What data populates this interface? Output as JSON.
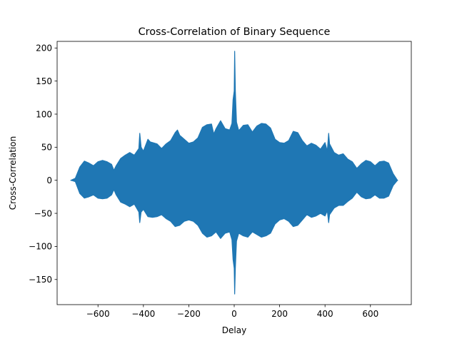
{
  "chart_data": {
    "type": "line",
    "title": "Cross-Correlation of Binary Sequence",
    "xlabel": "Delay",
    "ylabel": "Cross-Correlation",
    "xlim": [
      -780,
      780
    ],
    "ylim": [
      -188,
      210
    ],
    "xticks": [
      -600,
      -400,
      -200,
      0,
      200,
      400,
      600
    ],
    "xtick_labels": [
      "−600",
      "−400",
      "−200",
      "0",
      "200",
      "400",
      "600"
    ],
    "yticks": [
      -150,
      -100,
      -50,
      0,
      50,
      100,
      150,
      200
    ],
    "ytick_labels": [
      "−150",
      "−100",
      "−50",
      "0",
      "50",
      "100",
      "150",
      "200"
    ],
    "grid": false,
    "legend": false,
    "series": [
      {
        "color": "#1f77b4",
        "x_range": [
          -719,
          719
        ],
        "upper_envelope": [
          [
            -719,
            0
          ],
          [
            -700,
            3
          ],
          [
            -680,
            20
          ],
          [
            -660,
            29
          ],
          [
            -640,
            26
          ],
          [
            -620,
            22
          ],
          [
            -600,
            28
          ],
          [
            -580,
            30
          ],
          [
            -560,
            28
          ],
          [
            -540,
            24
          ],
          [
            -530,
            15
          ],
          [
            -520,
            22
          ],
          [
            -500,
            33
          ],
          [
            -480,
            38
          ],
          [
            -460,
            42
          ],
          [
            -440,
            38
          ],
          [
            -420,
            48
          ],
          [
            -416,
            71
          ],
          [
            -410,
            50
          ],
          [
            -400,
            44
          ],
          [
            -380,
            62
          ],
          [
            -370,
            58
          ],
          [
            -360,
            57
          ],
          [
            -340,
            55
          ],
          [
            -320,
            48
          ],
          [
            -300,
            55
          ],
          [
            -280,
            60
          ],
          [
            -260,
            72
          ],
          [
            -250,
            76
          ],
          [
            -240,
            68
          ],
          [
            -220,
            62
          ],
          [
            -200,
            56
          ],
          [
            -180,
            58
          ],
          [
            -160,
            64
          ],
          [
            -140,
            80
          ],
          [
            -120,
            84
          ],
          [
            -100,
            85
          ],
          [
            -90,
            70
          ],
          [
            -80,
            78
          ],
          [
            -60,
            90
          ],
          [
            -40,
            78
          ],
          [
            -20,
            76
          ],
          [
            -10,
            86
          ],
          [
            -5,
            122
          ],
          [
            0,
            135
          ],
          [
            2,
            195
          ],
          [
            5,
            135
          ],
          [
            10,
            88
          ],
          [
            20,
            75
          ],
          [
            40,
            83
          ],
          [
            60,
            84
          ],
          [
            80,
            73
          ],
          [
            100,
            82
          ],
          [
            120,
            86
          ],
          [
            140,
            85
          ],
          [
            160,
            79
          ],
          [
            180,
            62
          ],
          [
            200,
            57
          ],
          [
            220,
            56
          ],
          [
            240,
            60
          ],
          [
            260,
            74
          ],
          [
            280,
            72
          ],
          [
            300,
            60
          ],
          [
            320,
            52
          ],
          [
            340,
            56
          ],
          [
            360,
            53
          ],
          [
            380,
            47
          ],
          [
            400,
            57
          ],
          [
            410,
            44
          ],
          [
            416,
            71
          ],
          [
            420,
            55
          ],
          [
            440,
            42
          ],
          [
            460,
            38
          ],
          [
            480,
            40
          ],
          [
            500,
            32
          ],
          [
            520,
            28
          ],
          [
            540,
            18
          ],
          [
            560,
            25
          ],
          [
            580,
            30
          ],
          [
            600,
            28
          ],
          [
            620,
            22
          ],
          [
            640,
            28
          ],
          [
            660,
            29
          ],
          [
            680,
            26
          ],
          [
            700,
            10
          ],
          [
            719,
            0
          ]
        ],
        "lower_envelope": [
          [
            -719,
            0
          ],
          [
            -700,
            -2
          ],
          [
            -680,
            -20
          ],
          [
            -660,
            -27
          ],
          [
            -640,
            -25
          ],
          [
            -620,
            -22
          ],
          [
            -600,
            -27
          ],
          [
            -580,
            -28
          ],
          [
            -560,
            -27
          ],
          [
            -540,
            -22
          ],
          [
            -530,
            -14
          ],
          [
            -520,
            -22
          ],
          [
            -500,
            -33
          ],
          [
            -480,
            -36
          ],
          [
            -460,
            -40
          ],
          [
            -440,
            -36
          ],
          [
            -420,
            -48
          ],
          [
            -416,
            -64
          ],
          [
            -410,
            -48
          ],
          [
            -400,
            -44
          ],
          [
            -380,
            -55
          ],
          [
            -360,
            -56
          ],
          [
            -340,
            -55
          ],
          [
            -320,
            -52
          ],
          [
            -300,
            -58
          ],
          [
            -280,
            -62
          ],
          [
            -260,
            -70
          ],
          [
            -240,
            -68
          ],
          [
            -220,
            -62
          ],
          [
            -200,
            -60
          ],
          [
            -180,
            -62
          ],
          [
            -160,
            -68
          ],
          [
            -140,
            -80
          ],
          [
            -120,
            -86
          ],
          [
            -100,
            -84
          ],
          [
            -80,
            -78
          ],
          [
            -60,
            -88
          ],
          [
            -40,
            -80
          ],
          [
            -20,
            -78
          ],
          [
            -10,
            -90
          ],
          [
            -5,
            -120
          ],
          [
            0,
            -133
          ],
          [
            2,
            -172
          ],
          [
            5,
            -133
          ],
          [
            10,
            -92
          ],
          [
            20,
            -80
          ],
          [
            40,
            -84
          ],
          [
            60,
            -86
          ],
          [
            80,
            -78
          ],
          [
            100,
            -82
          ],
          [
            120,
            -86
          ],
          [
            140,
            -84
          ],
          [
            160,
            -80
          ],
          [
            180,
            -66
          ],
          [
            200,
            -60
          ],
          [
            220,
            -58
          ],
          [
            240,
            -62
          ],
          [
            260,
            -70
          ],
          [
            280,
            -68
          ],
          [
            300,
            -60
          ],
          [
            320,
            -52
          ],
          [
            340,
            -56
          ],
          [
            360,
            -54
          ],
          [
            380,
            -50
          ],
          [
            400,
            -54
          ],
          [
            410,
            -46
          ],
          [
            416,
            -64
          ],
          [
            420,
            -52
          ],
          [
            440,
            -42
          ],
          [
            460,
            -38
          ],
          [
            480,
            -38
          ],
          [
            500,
            -32
          ],
          [
            520,
            -27
          ],
          [
            540,
            -18
          ],
          [
            560,
            -25
          ],
          [
            580,
            -28
          ],
          [
            600,
            -27
          ],
          [
            620,
            -22
          ],
          [
            640,
            -27
          ],
          [
            660,
            -27
          ],
          [
            680,
            -24
          ],
          [
            700,
            -8
          ],
          [
            719,
            0
          ]
        ]
      }
    ]
  }
}
